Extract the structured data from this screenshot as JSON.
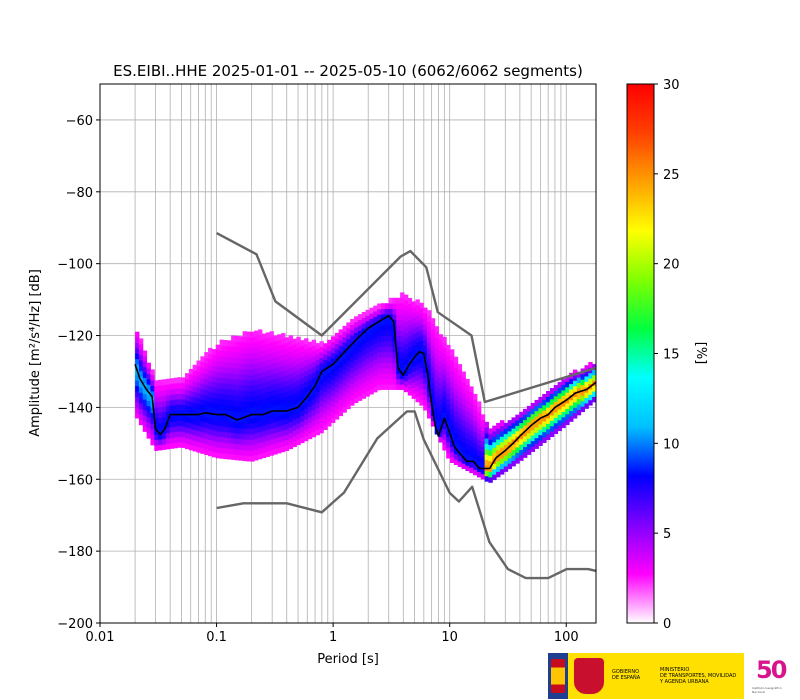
{
  "chart_data": {
    "type": "heatmap",
    "title": "ES.EIBI..HHE   2025-01-01 -- 2025-05-10  (6062/6062 segments)",
    "xlabel": "Period [s]",
    "ylabel": "Amplitude [m²/s⁴/Hz] [dB]",
    "xscale": "log",
    "xlim": [
      0.01,
      180
    ],
    "ylim": [
      -200,
      -50
    ],
    "x_ticks": [
      {
        "value": 0.01,
        "label": "0.01"
      },
      {
        "value": 0.1,
        "label": "0.1"
      },
      {
        "value": 1,
        "label": "1"
      },
      {
        "value": 10,
        "label": "10"
      },
      {
        "value": 100,
        "label": "100"
      }
    ],
    "y_ticks": [
      {
        "value": -60,
        "label": "−60"
      },
      {
        "value": -80,
        "label": "−80"
      },
      {
        "value": -100,
        "label": "−100"
      },
      {
        "value": -120,
        "label": "−120"
      },
      {
        "value": -140,
        "label": "−140"
      },
      {
        "value": -160,
        "label": "−160"
      },
      {
        "value": -180,
        "label": "−180"
      },
      {
        "value": -200,
        "label": "−200"
      }
    ],
    "grid": true,
    "colorbar": {
      "label": "[%]",
      "range": [
        0,
        30
      ],
      "ticks": [
        {
          "value": 0,
          "label": "0"
        },
        {
          "value": 5,
          "label": "5"
        },
        {
          "value": 10,
          "label": "10"
        },
        {
          "value": 15,
          "label": "15"
        },
        {
          "value": 20,
          "label": "20"
        },
        {
          "value": 25,
          "label": "25"
        },
        {
          "value": 30,
          "label": "30"
        }
      ],
      "colors": [
        "#ffffff",
        "#ff00ff",
        "#8000ff",
        "#0000ff",
        "#00c0ff",
        "#00ffff",
        "#00ff40",
        "#80ff00",
        "#ffff00",
        "#ffa000",
        "#ff4000",
        "#ff0000"
      ]
    },
    "series": [
      {
        "role": "nhnm",
        "color": "#666666",
        "x": [
          0.1,
          0.22,
          0.32,
          0.8,
          3.8,
          4.6,
          6.3,
          7.9,
          15.4,
          20,
          180
        ],
        "y": [
          -91.5,
          -97.4,
          -110.5,
          -120,
          -98,
          -96.5,
          -101,
          -113.5,
          -120,
          -138.5,
          -129
        ]
      },
      {
        "role": "nlnm",
        "color": "#666666",
        "x": [
          0.1,
          0.17,
          0.4,
          0.8,
          1.24,
          2.4,
          4.3,
          5,
          6,
          10,
          12,
          15.6,
          21.9,
          31.6,
          45,
          70,
          101,
          154,
          180
        ],
        "y": [
          -168,
          -166.7,
          -166.7,
          -169.2,
          -163.7,
          -148.6,
          -141.1,
          -141.1,
          -149,
          -163.8,
          -166.2,
          -162.1,
          -177.5,
          -185,
          -187.5,
          -187.5,
          -185,
          -185,
          -185.5
        ]
      },
      {
        "role": "mode",
        "color": "#000000",
        "x": [
          0.02,
          0.022,
          0.025,
          0.028,
          0.03,
          0.033,
          0.036,
          0.04,
          0.05,
          0.06,
          0.07,
          0.08,
          0.1,
          0.12,
          0.15,
          0.2,
          0.25,
          0.3,
          0.4,
          0.5,
          0.6,
          0.7,
          0.8,
          1.0,
          1.3,
          1.6,
          2.0,
          2.5,
          3.0,
          3.3,
          3.6,
          4.0,
          4.5,
          5.0,
          5.5,
          6.0,
          6.5,
          7.0,
          7.5,
          8.0,
          9.0,
          10,
          11,
          12,
          14,
          16,
          18,
          20,
          22,
          25,
          30,
          35,
          40,
          50,
          60,
          70,
          80,
          100,
          120,
          150,
          180
        ],
        "y": [
          -128,
          -132,
          -135,
          -137,
          -146,
          -147.5,
          -146,
          -142,
          -142,
          -142,
          -142,
          -141.5,
          -142,
          -142,
          -143.5,
          -142,
          -142,
          -141,
          -141,
          -140,
          -137,
          -134,
          -130,
          -128,
          -124,
          -121,
          -118,
          -116,
          -114.5,
          -116,
          -129,
          -131,
          -128,
          -126,
          -124.5,
          -125,
          -131,
          -139,
          -145,
          -148,
          -143,
          -147,
          -151,
          -152.5,
          -155,
          -155,
          -157,
          -157,
          -157,
          -154,
          -152,
          -150,
          -148,
          -145,
          -143,
          -142,
          -140,
          -138,
          -136,
          -135,
          -133
        ]
      }
    ],
    "density": {
      "description_bands": [
        {
          "x": 0.02,
          "lo": -142,
          "hi": -118
        },
        {
          "x": 0.03,
          "lo": -152,
          "hi": -133
        },
        {
          "x": 0.05,
          "lo": -151,
          "hi": -133
        },
        {
          "x": 0.1,
          "lo": -154,
          "hi": -123
        },
        {
          "x": 0.2,
          "lo": -155,
          "hi": -119
        },
        {
          "x": 0.4,
          "lo": -152,
          "hi": -121
        },
        {
          "x": 0.8,
          "lo": -147,
          "hi": -123
        },
        {
          "x": 1.5,
          "lo": -139,
          "hi": -116
        },
        {
          "x": 2.5,
          "lo": -135,
          "hi": -112
        },
        {
          "x": 4,
          "lo": -135,
          "hi": -109
        },
        {
          "x": 6,
          "lo": -140,
          "hi": -112
        },
        {
          "x": 10,
          "lo": -155,
          "hi": -124
        },
        {
          "x": 15,
          "lo": -158,
          "hi": -134
        },
        {
          "x": 22,
          "lo": -161,
          "hi": -147
        },
        {
          "x": 40,
          "lo": -155,
          "hi": -142
        },
        {
          "x": 100,
          "lo": -145,
          "hi": -132
        },
        {
          "x": 180,
          "lo": -138,
          "hi": -128
        }
      ]
    }
  },
  "footer": {
    "gov_text": "GOBIERNO\nDE ESPAÑA",
    "ministry_text": "MINISTERIO\nDE TRANSPORTES, MOVILIDAD\nY AGENDA URBANA",
    "logo_50": "50",
    "ign_caption": "Instituto Geográfico\nNacional"
  }
}
